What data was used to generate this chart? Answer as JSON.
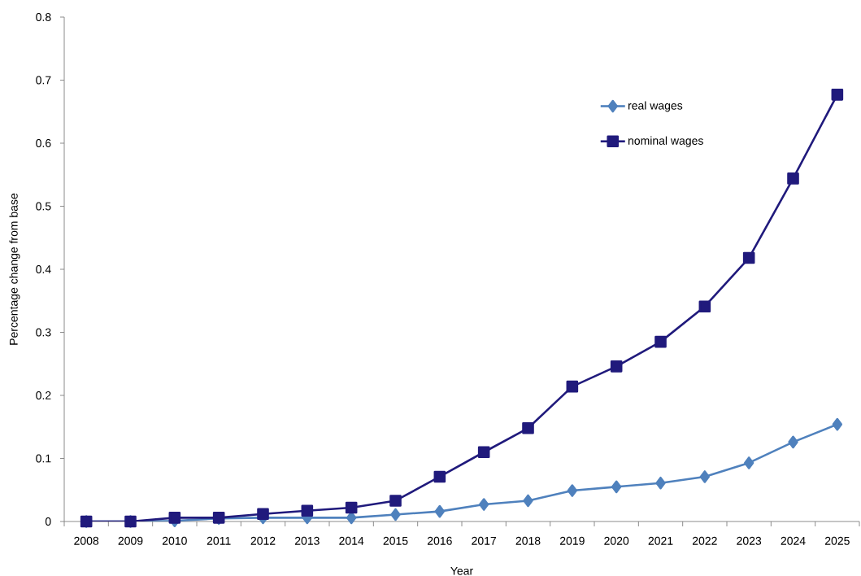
{
  "chart_data": {
    "type": "line",
    "xlabel": "Year",
    "ylabel": "Percentage change from base",
    "categories": [
      "2008",
      "2009",
      "2010",
      "2011",
      "2012",
      "2013",
      "2014",
      "2015",
      "2016",
      "2017",
      "2018",
      "2019",
      "2020",
      "2021",
      "2022",
      "2023",
      "2024",
      "2025"
    ],
    "series": [
      {
        "name": "real wages",
        "color": "#4f81bd",
        "marker": "diamond",
        "values": [
          0,
          0,
          0.001,
          0.005,
          0.006,
          0.006,
          0.006,
          0.011,
          0.016,
          0.027,
          0.033,
          0.049,
          0.055,
          0.061,
          0.071,
          0.093,
          0.126,
          0.154
        ]
      },
      {
        "name": "nominal wages",
        "color": "#201a7c",
        "marker": "square",
        "values": [
          0,
          0,
          0.006,
          0.006,
          0.012,
          0.017,
          0.022,
          0.033,
          0.071,
          0.11,
          0.148,
          0.214,
          0.246,
          0.285,
          0.341,
          0.418,
          0.544,
          0.677
        ]
      }
    ],
    "ylim": [
      0,
      0.8
    ],
    "yticks": [
      0,
      0.1,
      0.2,
      0.3,
      0.4,
      0.5,
      0.6,
      0.7,
      0.8
    ],
    "legend": "top right"
  }
}
